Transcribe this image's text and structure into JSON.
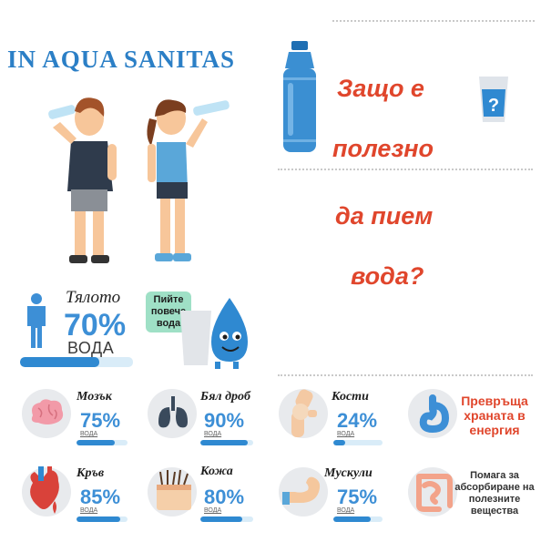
{
  "brand": "IN AQUA SANITAS",
  "question": {
    "line1": "Защо е",
    "line2": "полезно",
    "line3": "да пием",
    "line4": "вода?"
  },
  "body_stat": {
    "label": "Тялото",
    "percent": "70%",
    "unit": "ВОДА",
    "fraction": 0.7
  },
  "bubble_text": "Пийте повече вода",
  "organs": [
    {
      "name": "Мозък",
      "percent": "75%",
      "unit": "ВОДА",
      "fraction": 0.75,
      "icon": "brain-icon"
    },
    {
      "name": "Бял дроб",
      "percent": "90%",
      "unit": "ВОДА",
      "fraction": 0.9,
      "icon": "lungs-icon"
    },
    {
      "name": "Кости",
      "percent": "24%",
      "unit": "ВОДА",
      "fraction": 0.24,
      "icon": "bones-icon"
    },
    {
      "name": "Кръв",
      "percent": "85%",
      "unit": "ВОДА",
      "fraction": 0.85,
      "icon": "heart-icon"
    },
    {
      "name": "Кожа",
      "percent": "80%",
      "unit": "ВОДА",
      "fraction": 0.8,
      "icon": "skin-icon"
    },
    {
      "name": "Мускули",
      "percent": "75%",
      "unit": "ВОДА",
      "fraction": 0.75,
      "icon": "muscle-icon"
    }
  ],
  "benefits": [
    {
      "text": "Превръща храната в енергия",
      "icon": "stomach-icon"
    },
    {
      "text": "Помага за абсорбиране на полезните вещества",
      "icon": "intestine-icon"
    }
  ],
  "colors": {
    "accent_blue": "#2f89d1",
    "title_red": "#e0462c",
    "brand_blue": "#2b7fc6"
  }
}
